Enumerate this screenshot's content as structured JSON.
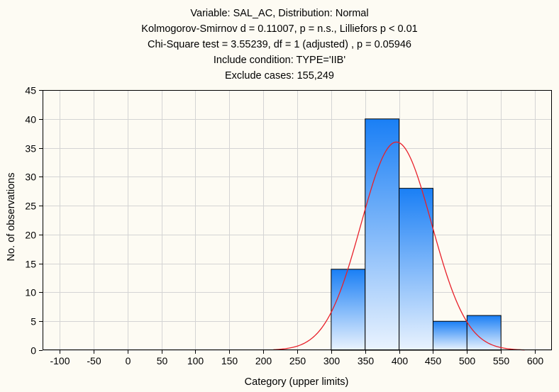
{
  "chart_data": {
    "type": "bar",
    "title_lines": [
      "Variable: SAL_AC, Distribution: Normal",
      "Kolmogorov-Smirnov d = 0.11007, p = n.s., Lilliefors p < 0.01",
      "Chi-Square test = 3.55239, df = 1 (adjusted) , p = 0.05946",
      "Include condition: TYPE='IIB'",
      "Exclude cases: 155,249"
    ],
    "xlabel": "Category (upper limits)",
    "ylabel": "No. of observations",
    "xlim": [
      -125,
      625
    ],
    "ylim": [
      0,
      45
    ],
    "x_ticks": [
      -100,
      -50,
      0,
      50,
      100,
      150,
      200,
      250,
      300,
      350,
      400,
      450,
      500,
      550,
      600
    ],
    "y_ticks": [
      0,
      5,
      10,
      15,
      20,
      25,
      30,
      35,
      40,
      45
    ],
    "grid": true,
    "bins": [
      {
        "lower": 300,
        "upper": 350,
        "count": 14
      },
      {
        "lower": 350,
        "upper": 400,
        "count": 40
      },
      {
        "lower": 400,
        "upper": 450,
        "count": 28
      },
      {
        "lower": 450,
        "upper": 500,
        "count": 5
      },
      {
        "lower": 500,
        "upper": 550,
        "count": 6
      }
    ],
    "fit_curve": {
      "distribution": "Normal",
      "mean": 396,
      "sd": 52,
      "peak": 36,
      "x_range": [
        215,
        585
      ]
    },
    "colors": {
      "bar_top": "#1a7ff5",
      "bar_bottom": "#eaf3fe",
      "bar_edge": "#000000",
      "curve": "#e8202a",
      "grid": "#d4d4d4",
      "background": "#fdfbf3"
    }
  }
}
